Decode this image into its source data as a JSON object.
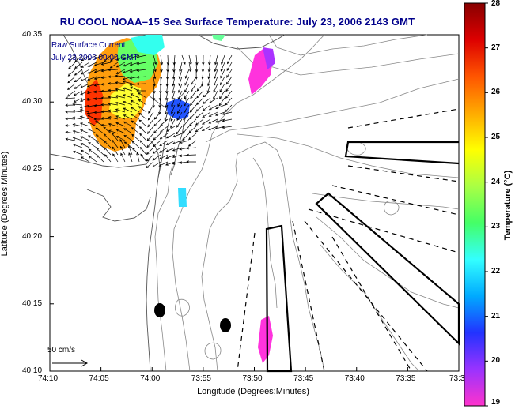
{
  "title": "RU COOL  NOAA–15  Sea Surface Temperature:  July 23, 2006 2143 GMT",
  "x_axis": {
    "label": "Longitude (Degrees:Minutes)",
    "ticks": [
      "74:10",
      "74:05",
      "74:00",
      "73:55",
      "73:50",
      "73:45",
      "73:40",
      "73:35",
      "73:3"
    ]
  },
  "y_axis": {
    "label": "Latitude (Degrees:Minutes)",
    "ticks": [
      "40:35",
      "40:30",
      "40:25",
      "40:20",
      "40:15",
      "40:10"
    ]
  },
  "colorbar": {
    "label": "Temperature (°C)",
    "ticks": [
      "28",
      "27",
      "26",
      "25",
      "24",
      "23",
      "22",
      "21",
      "20",
      "19"
    ],
    "min": 19,
    "max": 28,
    "colors": [
      "#ff33cc",
      "#9933ff",
      "#2233ff",
      "#00aaff",
      "#33ffff",
      "#44ff66",
      "#aaff44",
      "#ffff00",
      "#ffaa00",
      "#ff5500",
      "#dd0000",
      "#880000"
    ]
  },
  "overlay_legend": {
    "line1": "Raw Surface Current",
    "line2": "July 23 2006 00:00 GMT"
  },
  "scale_arrow": {
    "label": "50 cm/s"
  },
  "map_colors": {
    "frame": "#000000",
    "bathymetry": "#888888",
    "coast": "#555555",
    "vector": "#000000",
    "title": "#00008b"
  }
}
